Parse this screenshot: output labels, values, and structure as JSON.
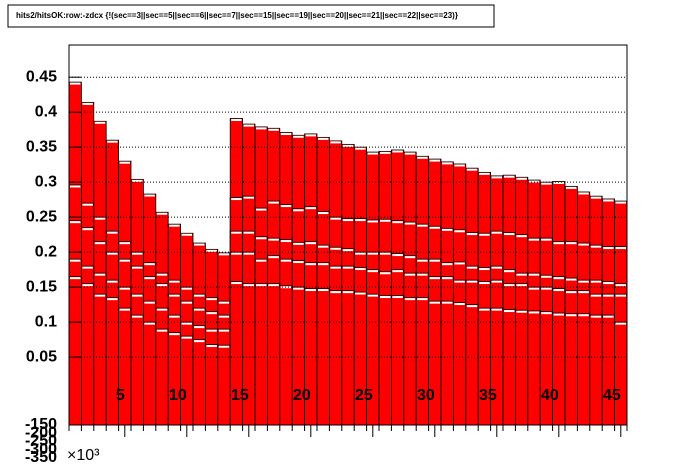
{
  "chart_data": {
    "type": "overlaid_histogram",
    "title": "hits2/hitsOK:row:-zdcx {!(sec==3||sec==5||sec==6||sec==7||sec==15||sec==19||sec==20||sec==21||sec==22||sec==23)}",
    "x": [
      1,
      2,
      3,
      4,
      5,
      6,
      7,
      8,
      9,
      10,
      11,
      12,
      13,
      14,
      15,
      16,
      17,
      18,
      19,
      20,
      21,
      22,
      23,
      24,
      25,
      26,
      27,
      28,
      29,
      30,
      31,
      32,
      33,
      34,
      35,
      36,
      37,
      38,
      39,
      40,
      41,
      42,
      43,
      44,
      45
    ],
    "series": [
      {
        "color": "#ff0000",
        "values": [
          0.443,
          0.414,
          0.387,
          0.36,
          0.33,
          0.304,
          0.283,
          0.257,
          0.24,
          0.227,
          0.213,
          0.204,
          0.199,
          0.391,
          0.383,
          0.379,
          0.377,
          0.371,
          0.367,
          0.369,
          0.364,
          0.359,
          0.354,
          0.35,
          0.343,
          0.344,
          0.346,
          0.343,
          0.337,
          0.333,
          0.329,
          0.326,
          0.32,
          0.314,
          0.309,
          0.31,
          0.307,
          0.303,
          0.3,
          0.301,
          0.294,
          0.286,
          0.28,
          0.276,
          0.273
        ]
      },
      {
        "color": "#ff0000",
        "values": [
          0.296,
          0.27,
          0.25,
          0.23,
          0.215,
          0.2,
          0.185,
          0.17,
          0.16,
          0.15,
          0.14,
          0.135,
          0.13,
          0.278,
          0.28,
          0.263,
          0.273,
          0.268,
          0.262,
          0.265,
          0.258,
          0.25,
          0.248,
          0.248,
          0.246,
          0.247,
          0.245,
          0.243,
          0.24,
          0.237,
          0.234,
          0.232,
          0.228,
          0.227,
          0.23,
          0.228,
          0.225,
          0.22,
          0.22,
          0.215,
          0.215,
          0.213,
          0.21,
          0.208,
          0.208
        ]
      },
      {
        "color": "#ff0000",
        "values": [
          0.245,
          0.235,
          0.215,
          0.2,
          0.19,
          0.18,
          0.165,
          0.155,
          0.14,
          0.13,
          0.12,
          0.115,
          0.11,
          0.23,
          0.23,
          0.222,
          0.22,
          0.218,
          0.214,
          0.215,
          0.21,
          0.207,
          0.205,
          0.2,
          0.2,
          0.2,
          0.198,
          0.195,
          0.19,
          0.19,
          0.185,
          0.186,
          0.18,
          0.178,
          0.18,
          0.175,
          0.17,
          0.17,
          0.167,
          0.165,
          0.163,
          0.16,
          0.16,
          0.158,
          0.155
        ]
      },
      {
        "color": "#ff0000",
        "values": [
          0.19,
          0.18,
          0.17,
          0.16,
          0.15,
          0.14,
          0.13,
          0.12,
          0.11,
          0.1,
          0.095,
          0.09,
          0.09,
          0.2,
          0.2,
          0.19,
          0.195,
          0.19,
          0.188,
          0.185,
          0.185,
          0.18,
          0.18,
          0.178,
          0.175,
          0.172,
          0.175,
          0.17,
          0.17,
          0.165,
          0.165,
          0.16,
          0.16,
          0.158,
          0.16,
          0.155,
          0.155,
          0.15,
          0.15,
          0.148,
          0.145,
          0.145,
          0.14,
          0.14,
          0.14
        ]
      },
      {
        "color": "#ff0000",
        "values": [
          0.165,
          0.155,
          0.14,
          0.135,
          0.12,
          0.11,
          0.1,
          0.09,
          0.085,
          0.08,
          0.075,
          0.068,
          0.067,
          0.158,
          0.155,
          0.155,
          0.155,
          0.152,
          0.15,
          0.148,
          0.148,
          0.145,
          0.145,
          0.143,
          0.14,
          0.138,
          0.138,
          0.135,
          0.135,
          0.13,
          0.13,
          0.128,
          0.125,
          0.12,
          0.12,
          0.118,
          0.117,
          0.116,
          0.115,
          0.113,
          0.112,
          0.112,
          0.11,
          0.11,
          0.1
        ]
      }
    ],
    "xlim": [
      0.5,
      45.5
    ],
    "xticks": [
      5,
      10,
      15,
      20,
      25,
      30,
      35,
      40,
      45
    ],
    "ylim": [
      -0.047,
      0.496
    ],
    "yticks": [
      0.05,
      0.1,
      0.15,
      0.2,
      0.25,
      0.3,
      0.35,
      0.4,
      0.45
    ],
    "y2lim": [
      -150,
      2153
    ],
    "y2ticks": [
      -350,
      -300,
      -250,
      -200,
      -150
    ],
    "y2_multiplier": "×10³",
    "grid": true
  }
}
